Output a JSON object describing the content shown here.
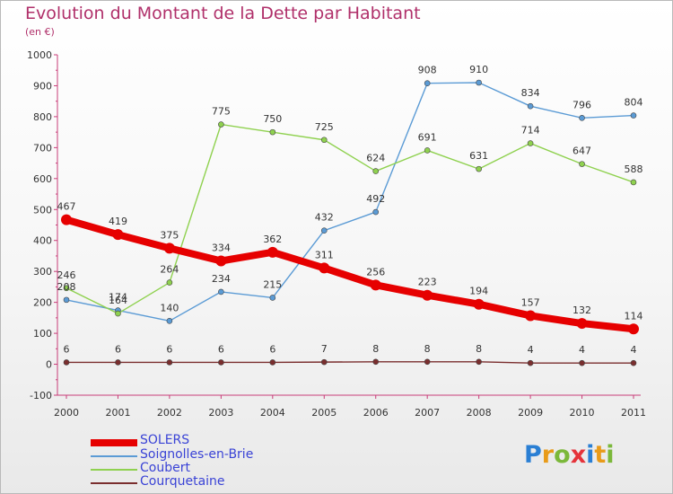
{
  "title": "Evolution du Montant de la Dette par Habitant",
  "subtitle": "(en €)",
  "logo": {
    "text": "Proxiti",
    "letters": [
      "P",
      "r",
      "o",
      "x",
      "i",
      "t",
      "i"
    ],
    "letter_colors": [
      "#2a7fd4",
      "#e89b1a",
      "#7bb83a",
      "#e5333a",
      "#2a7fd4",
      "#e89b1a",
      "#7bb83a"
    ]
  },
  "chart_data": {
    "type": "line",
    "categories": [
      "2000",
      "2001",
      "2002",
      "2003",
      "2004",
      "2005",
      "2006",
      "2007",
      "2008",
      "2009",
      "2010",
      "2011"
    ],
    "ylim": [
      -100,
      1000
    ],
    "yticks": [
      -100,
      0,
      100,
      200,
      300,
      400,
      500,
      600,
      700,
      800,
      900,
      1000
    ],
    "ytick_labels": [
      "-100",
      "0",
      "100",
      "200",
      "300",
      "400",
      "500",
      "600",
      "700",
      "800",
      "900",
      "1000"
    ],
    "grid": false,
    "legend_position": "bottom-left",
    "series": [
      {
        "name": "SOLERS",
        "color": "#e60000",
        "emphasis": "thick",
        "values": [
          467,
          419,
          375,
          334,
          362,
          311,
          256,
          223,
          194,
          157,
          132,
          114
        ],
        "labels": [
          "467",
          "419",
          "375",
          "334",
          "362",
          "311",
          "256",
          "223",
          "194",
          "157",
          "132",
          "114"
        ]
      },
      {
        "name": "Soignolles-en-Brie",
        "color": "#5b9bd5",
        "emphasis": "thin",
        "values": [
          208,
          174,
          140,
          234,
          215,
          432,
          492,
          908,
          910,
          834,
          796,
          804
        ],
        "labels": [
          "208",
          "174",
          "140",
          "234",
          "215",
          "432",
          "492",
          "908",
          "910",
          "834",
          "796",
          "804"
        ]
      },
      {
        "name": "Coubert",
        "color": "#8fd14f",
        "emphasis": "thin",
        "values": [
          246,
          164,
          264,
          775,
          750,
          725,
          624,
          691,
          631,
          714,
          647,
          588
        ],
        "labels": [
          "246",
          "164",
          "264",
          "775",
          "750",
          "725",
          "624",
          "691",
          "631",
          "714",
          "647",
          "588"
        ]
      },
      {
        "name": "Courquetaine",
        "color": "#7a2e2e",
        "emphasis": "thin",
        "values": [
          6,
          6,
          6,
          6,
          6,
          7,
          8,
          8,
          8,
          4,
          4,
          4
        ],
        "labels": [
          "6",
          "6",
          "6",
          "6",
          "6",
          "7",
          "8",
          "8",
          "8",
          "4",
          "4",
          "4"
        ]
      }
    ]
  }
}
